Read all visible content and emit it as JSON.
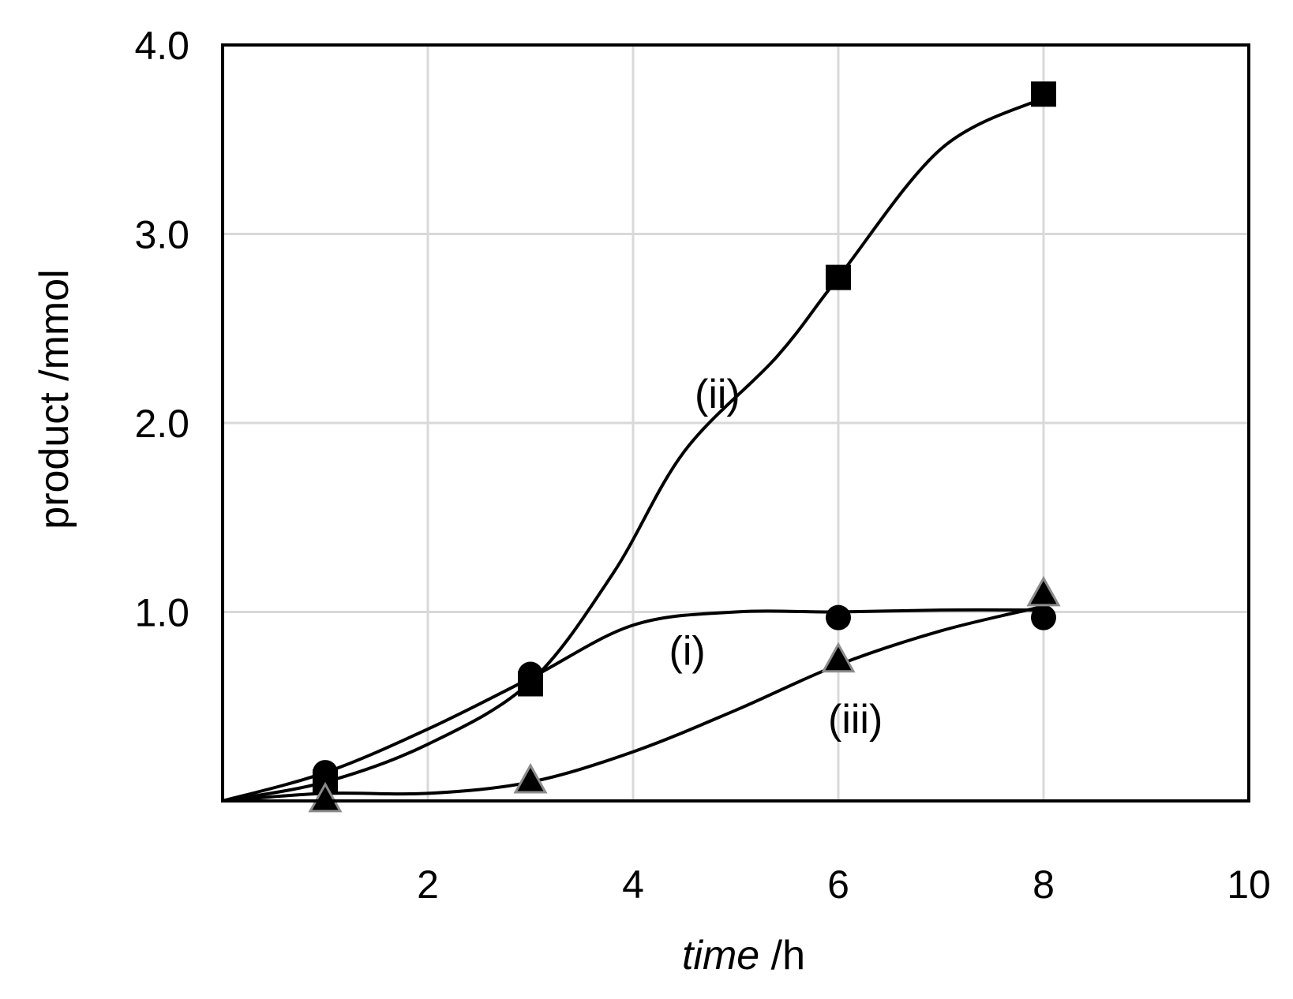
{
  "chart_data": {
    "type": "scatter",
    "xlabel_italic": "time",
    "xlabel_unit": " /h",
    "ylabel": "product /mmol",
    "xlim": [
      0,
      10
    ],
    "ylim": [
      0,
      4.0
    ],
    "x_ticks": [
      2,
      4,
      6,
      8,
      10
    ],
    "x_tick_labels": [
      "2",
      "4",
      "6",
      "8",
      "10"
    ],
    "y_ticks": [
      1.0,
      2.0,
      3.0,
      4.0
    ],
    "y_tick_labels": [
      "1.0",
      "2.0",
      "3.0",
      "4.0"
    ],
    "grid": true,
    "legend": "none",
    "series": [
      {
        "name": "(i)",
        "marker": "circle",
        "color": "#000000",
        "x": [
          1,
          3,
          6,
          8
        ],
        "y": [
          0.15,
          0.67,
          0.97,
          0.97
        ],
        "curve": [
          [
            0,
            0
          ],
          [
            1,
            0.15
          ],
          [
            2,
            0.38
          ],
          [
            3,
            0.65
          ],
          [
            4,
            0.93
          ],
          [
            5,
            1.0
          ],
          [
            6,
            1.0
          ],
          [
            7,
            1.01
          ],
          [
            8,
            1.01
          ]
        ],
        "annotation": {
          "text": "(i)",
          "x": 4.35,
          "y": 0.72
        }
      },
      {
        "name": "(ii)",
        "marker": "square",
        "color": "#000000",
        "x": [
          1,
          3,
          6,
          8
        ],
        "y": [
          0.1,
          0.62,
          2.77,
          3.74
        ],
        "curve": [
          [
            0,
            0
          ],
          [
            1,
            0.1
          ],
          [
            2,
            0.3
          ],
          [
            3,
            0.63
          ],
          [
            3.8,
            1.2
          ],
          [
            4.5,
            1.85
          ],
          [
            5.4,
            2.35
          ],
          [
            6,
            2.77
          ],
          [
            7,
            3.45
          ],
          [
            8,
            3.72
          ]
        ],
        "annotation": {
          "text": "(ii)",
          "x": 4.6,
          "y": 2.08
        }
      },
      {
        "name": "(iii)",
        "marker": "triangle",
        "color": "#000000",
        "x": [
          1,
          3,
          6,
          8
        ],
        "y": [
          0.0,
          0.1,
          0.74,
          1.09
        ],
        "curve": [
          [
            0,
            0
          ],
          [
            1,
            0.04
          ],
          [
            2,
            0.04
          ],
          [
            3,
            0.1
          ],
          [
            4,
            0.26
          ],
          [
            5,
            0.48
          ],
          [
            6,
            0.72
          ],
          [
            7,
            0.9
          ],
          [
            8,
            1.03
          ]
        ],
        "annotation": {
          "text": "(iii)",
          "x": 5.9,
          "y": 0.36
        }
      }
    ]
  }
}
